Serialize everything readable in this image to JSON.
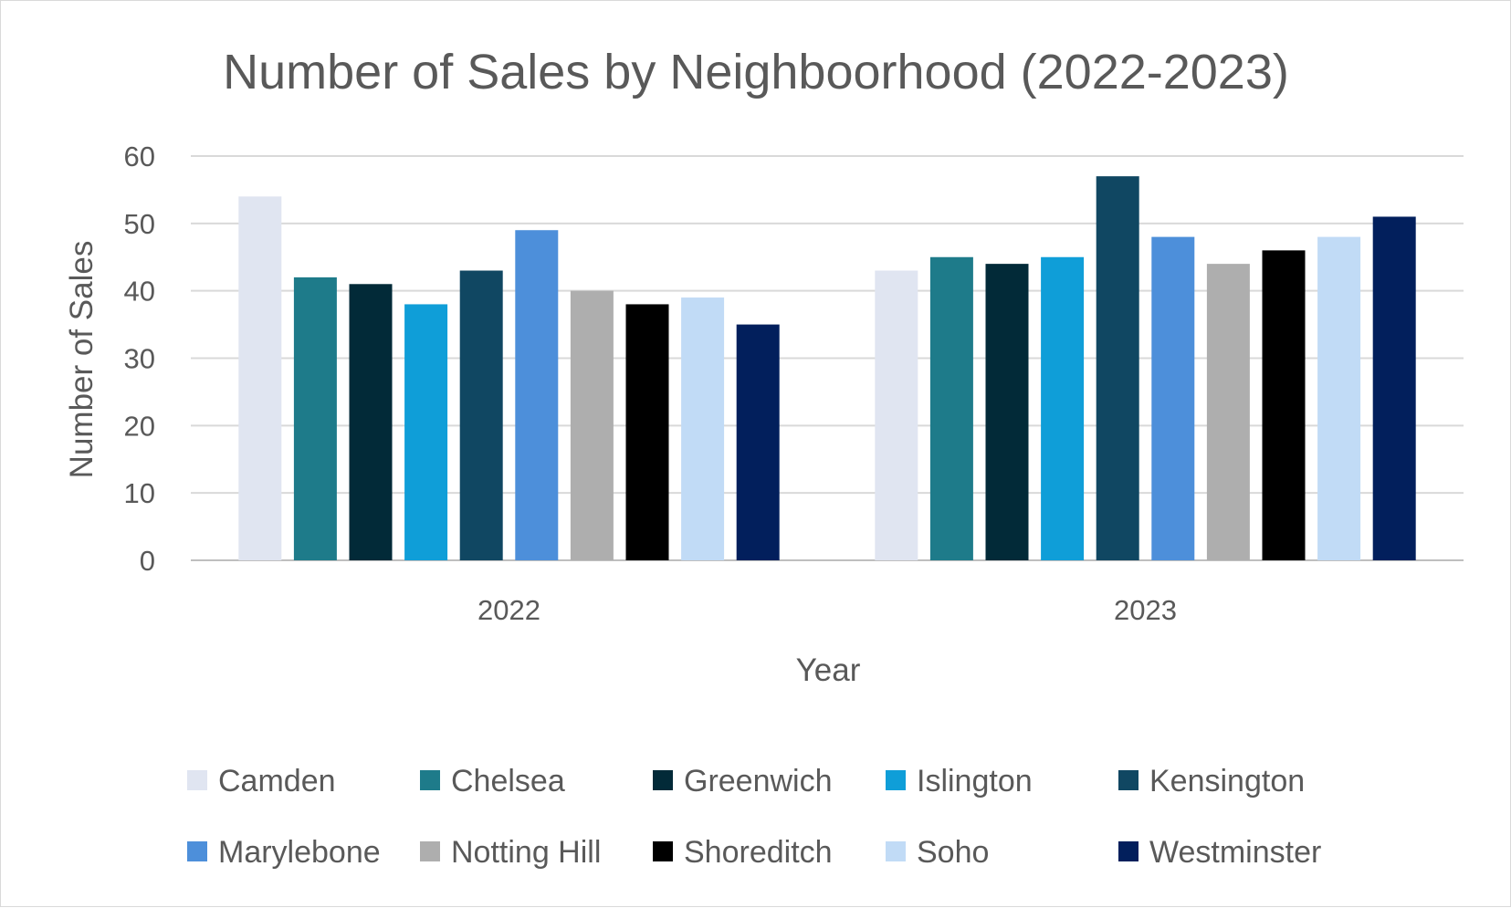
{
  "chart_data": {
    "type": "bar",
    "title": "Number of Sales by Neighboorhood (2022-2023)",
    "xlabel": "Year",
    "ylabel": "Number of Sales",
    "ylim": [
      0,
      60
    ],
    "yticks": [
      "0",
      "10",
      "20",
      "30",
      "40",
      "50",
      "60"
    ],
    "categories": [
      "2022",
      "2023"
    ],
    "grid": true,
    "legend_position": "bottom",
    "series": [
      {
        "name": "Camden",
        "color": "#E0E5F1",
        "values": [
          54,
          43
        ]
      },
      {
        "name": "Chelsea",
        "color": "#1E7B8A",
        "values": [
          42,
          45
        ]
      },
      {
        "name": "Greenwich",
        "color": "#022A38",
        "values": [
          41,
          44
        ]
      },
      {
        "name": "Islington",
        "color": "#0F9ED8",
        "values": [
          38,
          45
        ]
      },
      {
        "name": "Kensington",
        "color": "#104762",
        "values": [
          43,
          57
        ]
      },
      {
        "name": "Marylebone",
        "color": "#4D8FDA",
        "values": [
          49,
          48
        ]
      },
      {
        "name": "Notting Hill",
        "color": "#AEAEAE",
        "values": [
          40,
          44
        ]
      },
      {
        "name": "Shoreditch",
        "color": "#000000",
        "values": [
          38,
          46
        ]
      },
      {
        "name": "Soho",
        "color": "#C1DBF6",
        "values": [
          39,
          48
        ]
      },
      {
        "name": "Westminster",
        "color": "#021F5C",
        "values": [
          35,
          51
        ]
      }
    ]
  }
}
